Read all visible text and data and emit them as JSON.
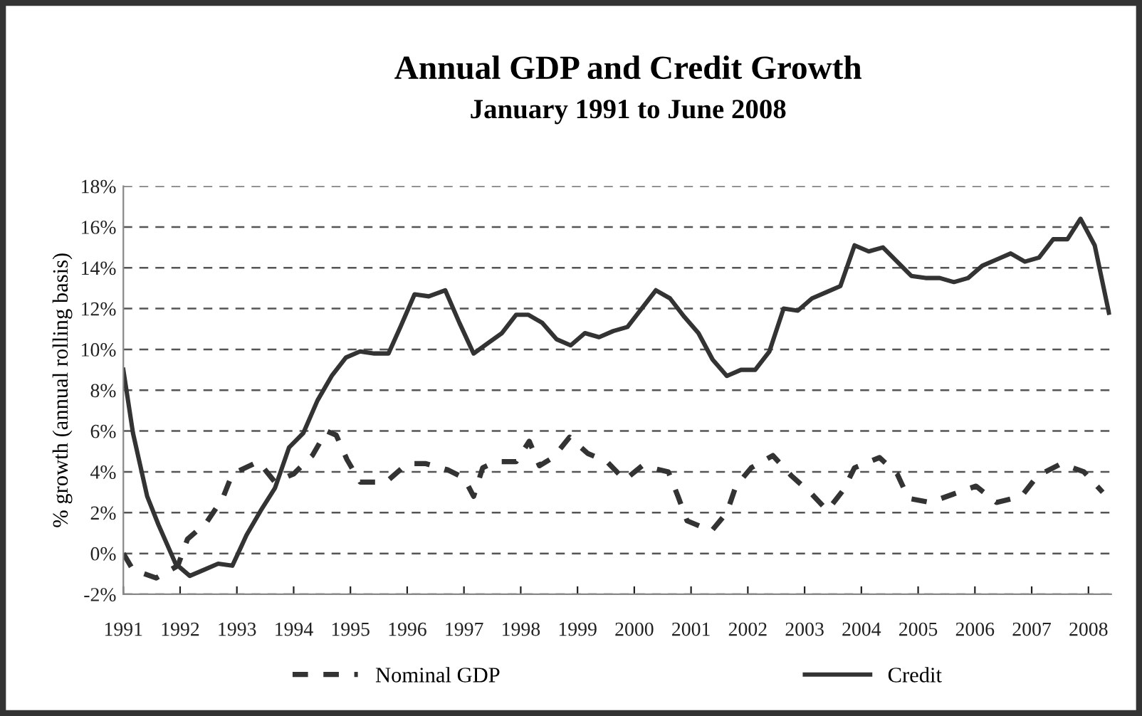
{
  "chart_data": {
    "type": "line",
    "title": "Annual GDP and Credit Growth",
    "subtitle": "January 1991 to June 2008",
    "ylabel": "% growth (annual rolling basis)",
    "xlim": [
      1991,
      2008.4
    ],
    "xticks": [
      1991,
      1992,
      1993,
      1994,
      1995,
      1996,
      1997,
      1998,
      1999,
      2000,
      2001,
      2002,
      2003,
      2004,
      2005,
      2006,
      2007,
      2008
    ],
    "ylim": [
      -2,
      18
    ],
    "yticks": [
      {
        "value": -2,
        "label": "-2%"
      },
      {
        "value": 0,
        "label": "0%"
      },
      {
        "value": 2,
        "label": "2%"
      },
      {
        "value": 4,
        "label": "4%"
      },
      {
        "value": 6,
        "label": "6%"
      },
      {
        "value": 8,
        "label": "8%"
      },
      {
        "value": 10,
        "label": "10%"
      },
      {
        "value": 12,
        "label": "12%"
      },
      {
        "value": 14,
        "label": "14%"
      },
      {
        "value": 16,
        "label": "16%"
      },
      {
        "value": 18,
        "label": "18%"
      }
    ],
    "grid": "y",
    "legend": "bottom",
    "marker": "none",
    "series": [
      {
        "name": "Nominal GDP",
        "color": "#333333",
        "line_style": "dashed",
        "x": [
          1991.0,
          1991.17,
          1991.58,
          1991.96,
          1992.13,
          1992.46,
          1992.75,
          1992.92,
          1993.38,
          1993.67,
          1994.0,
          1994.33,
          1994.58,
          1994.75,
          1994.94,
          1995.17,
          1995.63,
          1996.0,
          1996.33,
          1996.71,
          1997.0,
          1997.17,
          1997.33,
          1997.56,
          1997.92,
          1998.15,
          1998.33,
          1998.57,
          1998.86,
          1999.18,
          1999.52,
          1999.83,
          2000.14,
          2000.6,
          2000.77,
          2000.93,
          2001.36,
          2001.63,
          2001.79,
          2002.06,
          2002.44,
          2002.77,
          2003.13,
          2003.4,
          2003.68,
          2003.88,
          2004.32,
          2004.63,
          2004.83,
          2005.21,
          2005.61,
          2006.02,
          2006.38,
          2006.82,
          2007.1,
          2007.52,
          2007.92,
          2008.25
        ],
        "values": [
          0.0,
          -0.8,
          -1.2,
          -0.6,
          0.7,
          1.5,
          2.7,
          3.9,
          4.5,
          3.5,
          3.9,
          4.8,
          6.0,
          5.8,
          4.6,
          3.5,
          3.5,
          4.4,
          4.4,
          4.1,
          3.7,
          2.8,
          4.2,
          4.5,
          4.5,
          5.5,
          4.3,
          4.7,
          5.7,
          4.9,
          4.5,
          3.6,
          4.3,
          4.0,
          2.8,
          1.6,
          1.1,
          2.0,
          3.3,
          4.2,
          4.8,
          3.8,
          2.9,
          2.1,
          3.1,
          4.2,
          4.7,
          3.9,
          2.7,
          2.5,
          2.9,
          3.3,
          2.5,
          2.8,
          3.8,
          4.4,
          4.0,
          3.0
        ]
      },
      {
        "name": "Credit",
        "color": "#333333",
        "line_style": "solid",
        "x": [
          1991.0,
          1991.17,
          1991.42,
          1991.62,
          1991.92,
          1992.17,
          1992.42,
          1992.67,
          1992.92,
          1993.17,
          1993.42,
          1993.67,
          1993.92,
          1994.17,
          1994.42,
          1994.67,
          1994.92,
          1995.17,
          1995.42,
          1995.67,
          1995.88,
          1996.13,
          1996.38,
          1996.67,
          1996.92,
          1997.17,
          1997.42,
          1997.67,
          1997.92,
          1998.13,
          1998.38,
          1998.63,
          1998.88,
          1999.13,
          1999.38,
          1999.63,
          1999.88,
          2000.13,
          2000.38,
          2000.63,
          2000.88,
          2001.13,
          2001.38,
          2001.63,
          2001.88,
          2002.13,
          2002.38,
          2002.63,
          2002.88,
          2003.13,
          2003.38,
          2003.63,
          2003.88,
          2004.13,
          2004.38,
          2004.63,
          2004.88,
          2005.13,
          2005.38,
          2005.63,
          2005.88,
          2006.13,
          2006.38,
          2006.63,
          2006.88,
          2007.13,
          2007.38,
          2007.63,
          2007.86,
          2008.11,
          2008.36
        ],
        "values": [
          9.0,
          5.9,
          2.8,
          1.4,
          -0.5,
          -1.1,
          -0.8,
          -0.5,
          -0.6,
          0.9,
          2.1,
          3.2,
          5.2,
          5.9,
          7.5,
          8.7,
          9.6,
          9.9,
          9.8,
          9.8,
          11.1,
          12.7,
          12.6,
          12.9,
          11.3,
          9.8,
          10.3,
          10.8,
          11.7,
          11.7,
          11.3,
          10.5,
          10.2,
          10.8,
          10.6,
          10.9,
          11.1,
          12.0,
          12.9,
          12.5,
          11.6,
          10.8,
          9.5,
          8.7,
          9.0,
          9.0,
          9.9,
          12.0,
          11.9,
          12.5,
          12.8,
          13.1,
          15.1,
          14.8,
          15.0,
          14.3,
          13.6,
          13.5,
          13.5,
          13.3,
          13.5,
          14.1,
          14.4,
          14.7,
          14.3,
          14.5,
          15.4,
          15.4,
          16.4,
          15.1,
          11.8
        ]
      }
    ]
  }
}
